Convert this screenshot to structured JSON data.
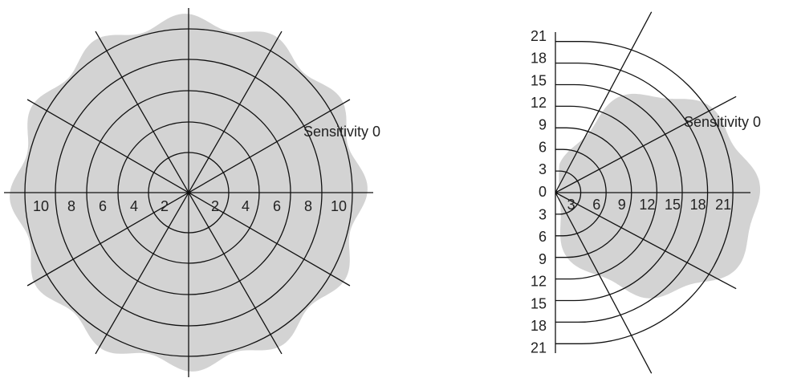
{
  "left": {
    "x_labels": [
      "10",
      "8",
      "6",
      "4",
      "2",
      "2",
      "4",
      "6",
      "8",
      "10"
    ],
    "annotation": "Sensitivity 0"
  },
  "right": {
    "y_labels": [
      "21",
      "18",
      "15",
      "12",
      "9",
      "6",
      "3",
      "0",
      "3",
      "6",
      "9",
      "12",
      "15",
      "18",
      "21"
    ],
    "x_labels": [
      "3",
      "6",
      "9",
      "12",
      "15",
      "18",
      "21"
    ],
    "annotation": "Sensitivity 0"
  }
}
